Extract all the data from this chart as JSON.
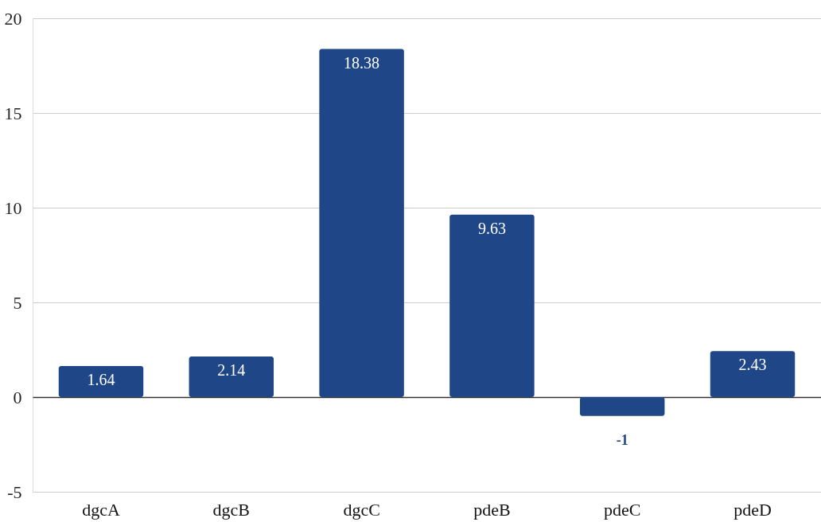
{
  "chart_data": {
    "type": "bar",
    "categories": [
      "dgcA",
      "dgcB",
      "dgcC",
      "pdeB",
      "pdeC",
      "pdeD"
    ],
    "values": [
      1.64,
      2.14,
      18.38,
      9.63,
      -1,
      2.43
    ],
    "color": "#1f4788",
    "ylim": [
      -5,
      20
    ],
    "yticks": [
      -5,
      0,
      5,
      10,
      15,
      20
    ],
    "grid": "y",
    "data_labels": true
  }
}
